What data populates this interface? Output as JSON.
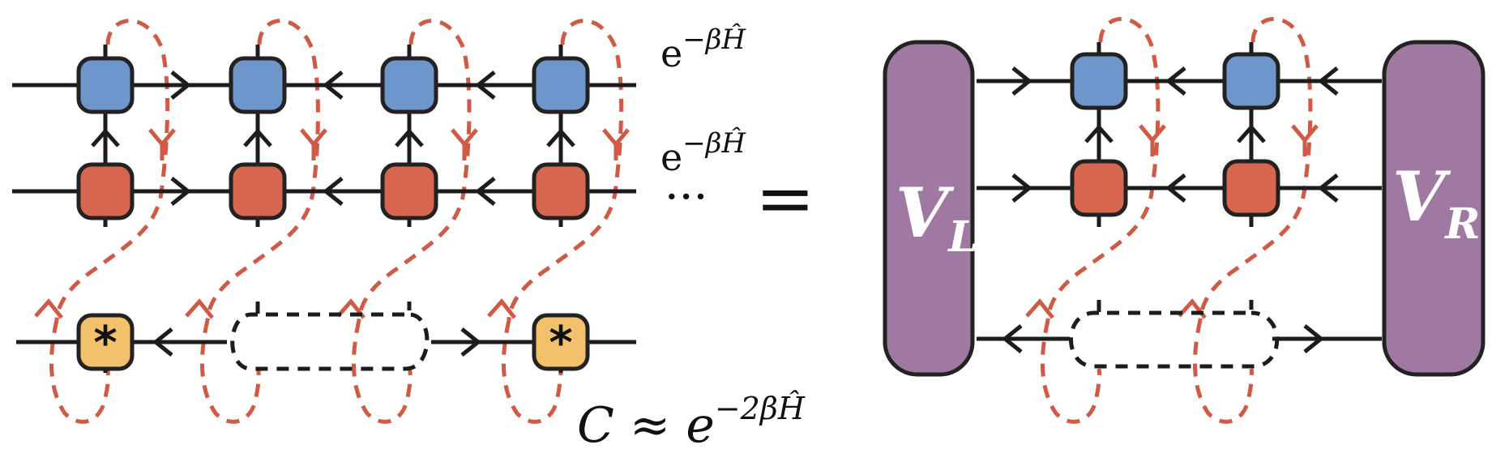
{
  "colors": {
    "blue": "#6f96cb",
    "red": "#d6674e",
    "yellow": "#f1c26b",
    "purple": "#a079a3",
    "wire": "#1c1c1c",
    "dashed": "#cf5a45"
  },
  "left": {
    "label_top_base": "e",
    "label_top_exp": "−βĤ",
    "label_mid_base": "e",
    "label_mid_exp": "−βĤ",
    "dots": "···",
    "equals": "=",
    "c_lhs": "C ≈ e",
    "c_exp": "−2βĤ",
    "star_symbol": "*"
  },
  "right": {
    "vl_main": "V",
    "vl_sub": "L",
    "vr_main": "V",
    "vr_sub": "R"
  }
}
